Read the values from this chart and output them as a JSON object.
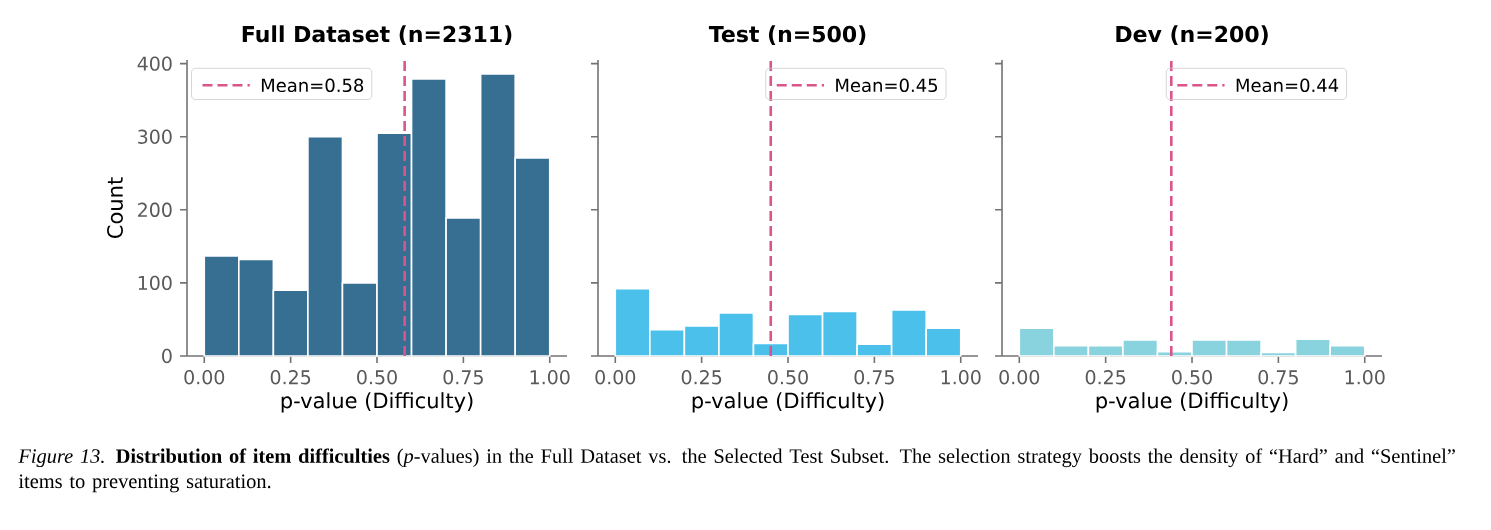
{
  "chart_data": [
    {
      "type": "histogram",
      "title": "Full Dataset (n=2311)",
      "xlabel": "p-value (Difficulty)",
      "ylabel": "Count",
      "bins": [
        0,
        0.1,
        0.2,
        0.3,
        0.4,
        0.5,
        0.6,
        0.7,
        0.8,
        0.9,
        1.0
      ],
      "values": [
        137,
        132,
        90,
        300,
        100,
        305,
        379,
        189,
        386,
        271
      ],
      "color": "#376f92",
      "xlim": [
        -0.05,
        1.05
      ],
      "ylim": [
        0,
        405
      ],
      "xticks": [
        {
          "value": 0,
          "label": "0.00"
        },
        {
          "value": 0.25,
          "label": "0.25"
        },
        {
          "value": 0.5,
          "label": "0.50"
        },
        {
          "value": 0.75,
          "label": "0.75"
        },
        {
          "value": 1,
          "label": "1.00"
        }
      ],
      "yticks": [
        0,
        100,
        200,
        300,
        400
      ],
      "ref_lines": [
        {
          "axis": "x",
          "value": 0.58,
          "label": "Mean=0.58",
          "color": "#d9558c",
          "line_style": "dashed"
        }
      ],
      "legend": "top left",
      "annotations": [
        "*Figure 13.* **Distribution of item difficulties** (*p*-values) in the Full Dataset vs. the Selected Test Subset. The selection strategy boosts the density of “Hard” and “Sentinel” items to preventing saturation."
      ]
    },
    {
      "type": "histogram",
      "title": "Test (n=500)",
      "xlabel": "p-value (Difficulty)",
      "bins": [
        0,
        0.1,
        0.2,
        0.3,
        0.4,
        0.5,
        0.6,
        0.7,
        0.8,
        0.9,
        1.0
      ],
      "values": [
        92,
        36,
        41,
        59,
        17,
        57,
        61,
        16,
        63,
        38
      ],
      "color": "#4bc0eb",
      "xlim": [
        -0.05,
        1.05
      ],
      "ylim": [
        0,
        405
      ],
      "xticks": [
        {
          "value": 0,
          "label": "0.00"
        },
        {
          "value": 0.25,
          "label": "0.25"
        },
        {
          "value": 0.5,
          "label": "0.50"
        },
        {
          "value": 0.75,
          "label": "0.75"
        },
        {
          "value": 1,
          "label": "1.00"
        }
      ],
      "yticks": [
        0,
        100,
        200,
        300,
        400
      ],
      "tick_labels": "x",
      "ref_lines": [
        {
          "axis": "x",
          "value": 0.45,
          "label": "Mean=0.45",
          "color": "#d9558c",
          "line_style": "dashed"
        }
      ],
      "legend": "top right"
    },
    {
      "type": "histogram",
      "title": "Dev (n=200)",
      "xlabel": "p-value (Difficulty)",
      "bins": [
        0,
        0.1,
        0.2,
        0.3,
        0.4,
        0.5,
        0.6,
        0.7,
        0.8,
        0.9,
        1.0
      ],
      "values": [
        38,
        14,
        14,
        22,
        6,
        22,
        22,
        5,
        23,
        14
      ],
      "color": "#88d3dd",
      "xlim": [
        -0.05,
        1.05
      ],
      "ylim": [
        0,
        405
      ],
      "xticks": [
        {
          "value": 0,
          "label": "0.00"
        },
        {
          "value": 0.25,
          "label": "0.25"
        },
        {
          "value": 0.5,
          "label": "0.50"
        },
        {
          "value": 0.75,
          "label": "0.75"
        },
        {
          "value": 1,
          "label": "1.00"
        }
      ],
      "yticks": [
        0,
        100,
        200,
        300,
        400
      ],
      "tick_labels": "x",
      "ref_lines": [
        {
          "axis": "x",
          "value": 0.44,
          "label": "Mean=0.44",
          "color": "#d9558c",
          "line_style": "dashed"
        }
      ],
      "legend": "top right"
    }
  ]
}
